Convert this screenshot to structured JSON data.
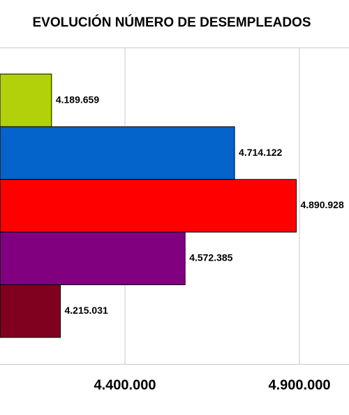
{
  "chart_data": {
    "type": "bar",
    "orientation": "horizontal",
    "title": "EVOLUCIÓN NÚMERO DE DESEMPLEADOS",
    "categories": [
      null,
      null,
      null,
      null,
      null
    ],
    "values": [
      4189659,
      4714122,
      4890928,
      4572385,
      4215031
    ],
    "value_labels": [
      "4.189.659",
      "4.714.122",
      "4.890.928",
      "4.572.385",
      "4.215.031"
    ],
    "colors": [
      "#b2d10a",
      "#0563cc",
      "#ff0000",
      "#800080",
      "#800020"
    ],
    "xlim": [
      4042000,
      5042000
    ],
    "xticks": [
      {
        "value": 4400000,
        "label": "4.400.000"
      },
      {
        "value": 4900000,
        "label": "4.900.000"
      }
    ],
    "grid": true
  }
}
